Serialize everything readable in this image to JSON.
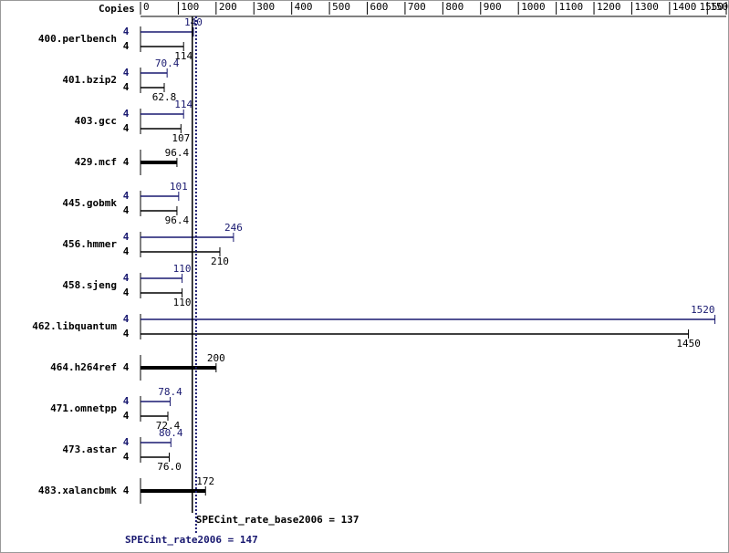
{
  "chart_data": {
    "type": "bar",
    "orientation": "horizontal",
    "x_axis_label": "Copies",
    "categories": [
      "400.perlbench",
      "401.bzip2",
      "403.gcc",
      "429.mcf",
      "445.gobmk",
      "456.hmmer",
      "458.sjeng",
      "462.libquantum",
      "464.h264ref",
      "471.omnetpp",
      "473.astar",
      "483.xalancbmk"
    ],
    "xlim": [
      0,
      1550
    ],
    "xticks": [
      0,
      100,
      200,
      300,
      400,
      500,
      600,
      700,
      800,
      900,
      1000,
      1100,
      1200,
      1300,
      1400,
      1500,
      1550
    ],
    "series": [
      {
        "color": "#191970",
        "values": [
          140,
          70.4,
          114,
          null,
          101,
          246,
          110,
          1520,
          null,
          78.4,
          80.4,
          null
        ],
        "copies": [
          4,
          4,
          4,
          null,
          4,
          4,
          4,
          4,
          null,
          4,
          4,
          null
        ]
      },
      {
        "color": "#000000",
        "values": [
          114,
          62.8,
          107,
          96.4,
          96.4,
          210,
          110,
          1450,
          200,
          72.4,
          76.0,
          172
        ],
        "value_labels": [
          "114",
          "62.8",
          "107",
          "96.4",
          "96.4",
          "210",
          "110",
          "1450",
          "200",
          "72.4",
          "76.0",
          "172"
        ],
        "copies": [
          4,
          4,
          4,
          4,
          4,
          4,
          4,
          4,
          4,
          4,
          4,
          4
        ]
      }
    ],
    "reference_lines": [
      {
        "label": "SPECint_rate_base2006 = 137",
        "value": 137,
        "color": "#000000",
        "style": "solid"
      },
      {
        "label": "SPECint_rate2006 = 147",
        "value": 147,
        "color": "#191970",
        "style": "dotted"
      }
    ]
  }
}
